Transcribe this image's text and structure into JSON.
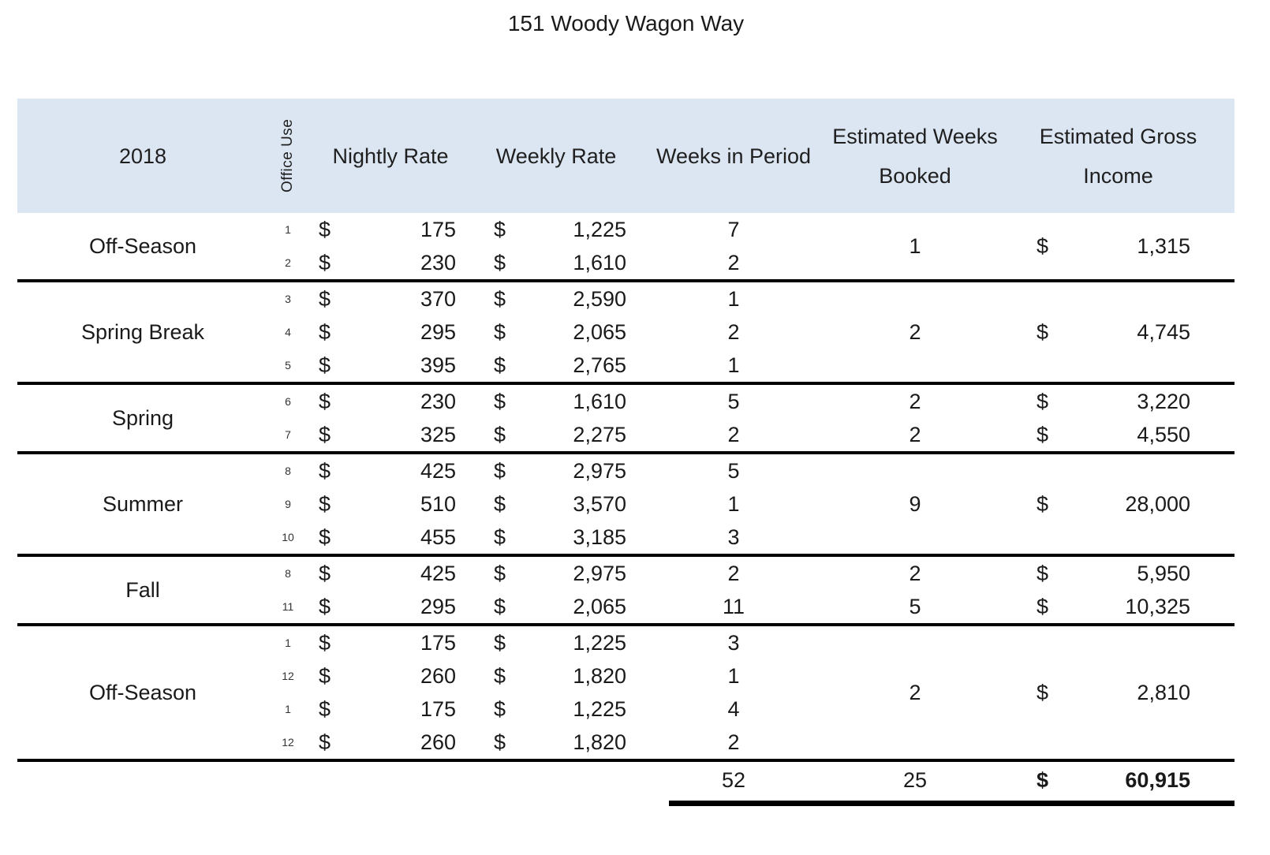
{
  "title": "151 Woody Wagon Way",
  "currency_symbol": "$",
  "colors": {
    "header_bg": "#dce6f2",
    "text": "#1a1a1a",
    "separator": "#000000"
  },
  "header": {
    "year": "2018",
    "office_use": "Office Use",
    "nightly_rate": "Nightly Rate",
    "weekly_rate": "Weekly Rate",
    "weeks_in_period": "Weeks in Period",
    "estimated_weeks_booked": "Estimated Weeks Booked",
    "estimated_gross_income": "Estimated Gross Income"
  },
  "groups": [
    {
      "season": "Off-Season",
      "booked": "1",
      "income": "1,315",
      "rows": [
        {
          "office_use": "1",
          "nightly": "175",
          "weekly": "1,225",
          "weeks": "7"
        },
        {
          "office_use": "2",
          "nightly": "230",
          "weekly": "1,610",
          "weeks": "2"
        }
      ]
    },
    {
      "season": "Spring Break",
      "booked": "2",
      "income": "4,745",
      "rows": [
        {
          "office_use": "3",
          "nightly": "370",
          "weekly": "2,590",
          "weeks": "1"
        },
        {
          "office_use": "4",
          "nightly": "295",
          "weekly": "2,065",
          "weeks": "2"
        },
        {
          "office_use": "5",
          "nightly": "395",
          "weekly": "2,765",
          "weeks": "1"
        }
      ]
    },
    {
      "season": "Spring",
      "rows": [
        {
          "office_use": "6",
          "nightly": "230",
          "weekly": "1,610",
          "weeks": "5",
          "booked": "2",
          "income": "3,220"
        },
        {
          "office_use": "7",
          "nightly": "325",
          "weekly": "2,275",
          "weeks": "2",
          "booked": "2",
          "income": "4,550"
        }
      ]
    },
    {
      "season": "Summer",
      "booked": "9",
      "income": "28,000",
      "rows": [
        {
          "office_use": "8",
          "nightly": "425",
          "weekly": "2,975",
          "weeks": "5"
        },
        {
          "office_use": "9",
          "nightly": "510",
          "weekly": "3,570",
          "weeks": "1"
        },
        {
          "office_use": "10",
          "nightly": "455",
          "weekly": "3,185",
          "weeks": "3"
        }
      ]
    },
    {
      "season": "Fall",
      "rows": [
        {
          "office_use": "8",
          "nightly": "425",
          "weekly": "2,975",
          "weeks": "2",
          "booked": "2",
          "income": "5,950"
        },
        {
          "office_use": "11",
          "nightly": "295",
          "weekly": "2,065",
          "weeks": "11",
          "booked": "5",
          "income": "10,325"
        }
      ]
    },
    {
      "season": "Off-Season",
      "booked": "2",
      "income": "2,810",
      "rows": [
        {
          "office_use": "1",
          "nightly": "175",
          "weekly": "1,225",
          "weeks": "3"
        },
        {
          "office_use": "12",
          "nightly": "260",
          "weekly": "1,820",
          "weeks": "1"
        },
        {
          "office_use": "1",
          "nightly": "175",
          "weekly": "1,225",
          "weeks": "4"
        },
        {
          "office_use": "12",
          "nightly": "260",
          "weekly": "1,820",
          "weeks": "2"
        }
      ]
    }
  ],
  "totals": {
    "weeks": "52",
    "booked": "25",
    "income": "60,915"
  }
}
